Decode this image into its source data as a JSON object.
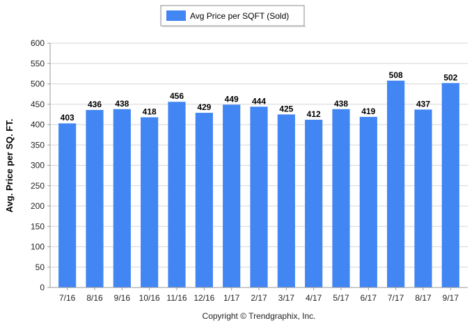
{
  "chart_data": {
    "type": "bar",
    "title": "",
    "xlabel": "",
    "ylabel": "Avg. Price per SQ. FT.",
    "categories": [
      "7/16",
      "8/16",
      "9/16",
      "10/16",
      "11/16",
      "12/16",
      "1/17",
      "2/17",
      "3/17",
      "4/17",
      "5/17",
      "6/17",
      "7/17",
      "8/17",
      "9/17"
    ],
    "series": [
      {
        "name": "Avg Price per SQFT (Sold)",
        "values": [
          403,
          436,
          438,
          418,
          456,
          429,
          449,
          444,
          425,
          412,
          438,
          419,
          508,
          437,
          502
        ],
        "color": "#4286f4"
      }
    ],
    "ylim": [
      0,
      600
    ],
    "yticks": [
      0,
      50,
      100,
      150,
      200,
      250,
      300,
      350,
      400,
      450,
      500,
      550,
      600
    ],
    "grid": true,
    "legend_position": "top-center",
    "data_labels": true
  },
  "footer": {
    "copyright": "Copyright © Trendgraphix, Inc."
  }
}
